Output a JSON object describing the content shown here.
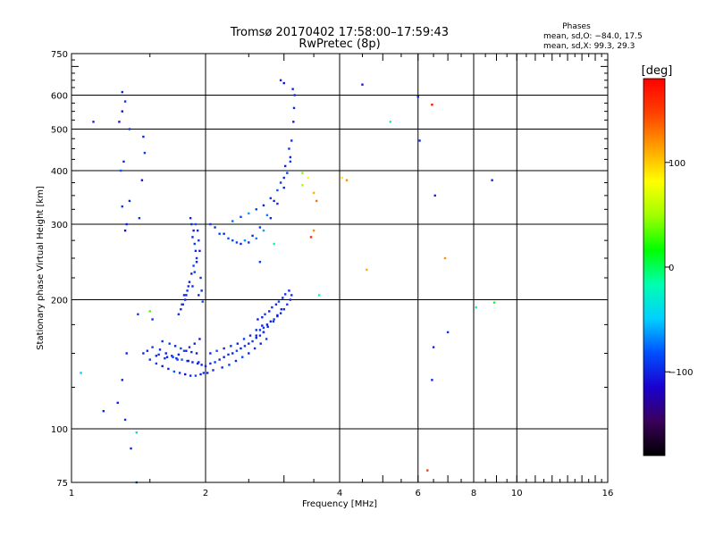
{
  "chart_data": {
    "type": "scatter",
    "title": "Tromsø 20170402 17:58:00–17:59:43",
    "subtitle": "RwPretec (8p)",
    "xlabel": "Frequency [MHz]",
    "ylabel": "Stationary phase Virtual Height [km]",
    "x_scale": "log",
    "y_scale": "log",
    "xlim": [
      1,
      16
    ],
    "ylim": [
      75,
      750
    ],
    "x_ticks": [
      1,
      2,
      4,
      6,
      8,
      10,
      16
    ],
    "x_tick_labels": [
      "1",
      "2",
      "4",
      "6",
      "8",
      "10",
      "16"
    ],
    "y_ticks": [
      75,
      100,
      200,
      300,
      400,
      500,
      600,
      750
    ],
    "y_tick_labels": [
      "75",
      "100",
      "200",
      "300",
      "400",
      "500",
      "600",
      "750"
    ],
    "grid": true,
    "phase_info": {
      "heading": "Phases",
      "line_o": "mean, sd,O: −84.0, 17.5",
      "line_x": "mean, sd,X:  99.3, 29.3"
    },
    "colorbar": {
      "label": "[deg]",
      "range": [
        -180,
        180
      ],
      "ticks": [
        100,
        0,
        -100
      ],
      "tick_labels": [
        "100",
        "0",
        "−100"
      ],
      "colors": [
        "#000000",
        "#3a005a",
        "#1a00d0",
        "#0050ff",
        "#00d0ff",
        "#00ffb0",
        "#00ff00",
        "#a0ff00",
        "#ffff00",
        "#ffa000",
        "#ff4000",
        "#ff0000"
      ]
    },
    "series": [
      {
        "x": [
          1.3,
          1.32,
          1.3,
          1.28,
          1.35,
          1.31,
          1.29,
          1.3,
          1.33,
          1.32,
          1.45,
          1.46,
          1.44,
          1.35,
          1.42,
          1.12,
          1.52,
          1.41,
          1.33,
          1.3,
          1.27,
          1.18,
          1.32,
          1.36
        ],
        "y": [
          610,
          580,
          550,
          520,
          500,
          420,
          400,
          330,
          300,
          290,
          480,
          440,
          380,
          340,
          310,
          520,
          180,
          185,
          150,
          130,
          115,
          110,
          105,
          90
        ],
        "phase": [
          -100,
          -95,
          -110,
          -105,
          -90,
          -100,
          -80,
          -95,
          -100,
          -110,
          -100,
          -90,
          -105,
          -100,
          -95,
          -100,
          -95,
          -90,
          -100,
          -100,
          -105,
          -100,
          -95,
          -100
        ]
      },
      {
        "x": [
          1.45,
          1.5,
          1.55,
          1.6,
          1.65,
          1.7,
          1.75,
          1.8,
          1.85,
          1.9,
          1.95,
          1.98,
          1.52,
          1.58,
          1.63,
          1.68,
          1.72,
          1.77,
          1.82,
          1.87,
          1.92,
          1.96,
          1.6,
          1.66,
          1.71,
          1.76,
          1.81,
          1.86,
          1.91,
          1.55,
          1.62,
          1.69,
          1.74,
          1.79,
          1.84,
          1.89,
          1.94,
          1.48,
          1.57,
          1.64,
          1.73,
          1.83,
          1.93
        ],
        "y": [
          150,
          145,
          142,
          140,
          138,
          136,
          135,
          134,
          133,
          133,
          134,
          135,
          155,
          153,
          150,
          148,
          146,
          145,
          144,
          143,
          142,
          141,
          160,
          158,
          156,
          154,
          152,
          151,
          150,
          148,
          146,
          147,
          149,
          152,
          155,
          158,
          162,
          152,
          149,
          147,
          145,
          144,
          143
        ],
        "phase": [
          -100,
          -95,
          -90,
          -105,
          -100,
          -80,
          -95,
          -110,
          -100,
          -85,
          -100,
          -95,
          -90,
          -100,
          -105,
          -95,
          -100,
          -80,
          -95,
          -100,
          -110,
          -100,
          -95,
          -90,
          -100,
          -85,
          -100,
          -95,
          -105,
          -100,
          -95,
          -90,
          -100,
          -85,
          -95,
          -100,
          -105,
          -100,
          -95,
          -100,
          -90,
          -100,
          -95
        ]
      },
      {
        "x": [
          1.85,
          1.86,
          1.88,
          1.87,
          1.89,
          1.9,
          1.91,
          1.88,
          1.86,
          1.84,
          1.82,
          1.8,
          1.78,
          1.76,
          1.74,
          1.9,
          1.92,
          1.93,
          1.94,
          1.91,
          1.89,
          1.87,
          1.95,
          1.96,
          1.97,
          1.93,
          1.83,
          1.79,
          1.77,
          1.81
        ],
        "y": [
          310,
          300,
          290,
          280,
          270,
          260,
          250,
          240,
          230,
          220,
          210,
          200,
          195,
          190,
          185,
          300,
          290,
          275,
          260,
          245,
          232,
          215,
          225,
          210,
          198,
          205,
          215,
          205,
          195,
          205
        ],
        "phase": [
          -100,
          -95,
          -105,
          -100,
          -90,
          -100,
          -95,
          -85,
          -100,
          -105,
          -95,
          -100,
          -90,
          -100,
          -95,
          -80,
          -100,
          -95,
          -105,
          -100,
          -90,
          -100,
          -95,
          -100,
          -85,
          -100,
          -95,
          -100,
          -90,
          -100
        ]
      },
      {
        "x": [
          2.0,
          2.05,
          2.1,
          2.15,
          2.2,
          2.25,
          2.3,
          2.35,
          2.4,
          2.45,
          2.5,
          2.55,
          2.6,
          2.65,
          2.7,
          2.05,
          2.12,
          2.2,
          2.28,
          2.36,
          2.44,
          2.52,
          2.6,
          2.68,
          2.02,
          2.08,
          2.18,
          2.26,
          2.34,
          2.42,
          2.5,
          2.58,
          2.66,
          2.74
        ],
        "y": [
          140,
          142,
          143,
          145,
          147,
          149,
          150,
          152,
          154,
          156,
          158,
          160,
          163,
          165,
          168,
          150,
          152,
          154,
          156,
          158,
          162,
          165,
          170,
          174,
          135,
          137,
          139,
          141,
          144,
          147,
          150,
          154,
          158,
          162
        ],
        "phase": [
          -100,
          -95,
          -90,
          -100,
          -105,
          -95,
          -100,
          -85,
          -100,
          -95,
          -100,
          -90,
          -100,
          -95,
          -105,
          -100,
          -80,
          -100,
          -95,
          -100,
          -90,
          -100,
          -95,
          -105,
          -100,
          -95,
          -100,
          -90,
          -100,
          -85,
          -100,
          -95,
          -100,
          -90
        ]
      },
      {
        "x": [
          2.6,
          2.65,
          2.7,
          2.75,
          2.8,
          2.85,
          2.9,
          2.95,
          3.0,
          3.05,
          3.1,
          3.12,
          2.62,
          2.68,
          2.72,
          2.78,
          2.82,
          2.88,
          2.92,
          2.98,
          3.02,
          3.08,
          2.7,
          2.76,
          2.84,
          2.9,
          2.96
        ],
        "y": [
          165,
          170,
          172,
          175,
          178,
          180,
          183,
          186,
          190,
          195,
          200,
          205,
          180,
          182,
          185,
          188,
          192,
          195,
          198,
          202,
          206,
          210,
          168,
          173,
          178,
          184,
          190
        ],
        "phase": [
          -100,
          -95,
          -90,
          -105,
          -100,
          -85,
          -100,
          -95,
          -100,
          -90,
          -100,
          -95,
          -105,
          -100,
          -90,
          -100,
          -95,
          -100,
          -85,
          -100,
          -95,
          -100,
          -90,
          -100,
          -95,
          -105,
          -100
        ]
      },
      {
        "x": [
          2.05,
          2.1,
          2.2,
          2.3,
          2.4,
          2.5,
          2.6,
          2.7,
          2.8,
          2.9,
          3.0,
          3.05,
          3.1,
          3.12,
          3.15,
          3.16,
          3.17,
          3.14,
          2.15,
          2.25,
          2.35,
          2.45,
          2.55,
          2.65,
          2.75,
          2.85,
          2.95,
          3.02,
          3.08,
          2.3,
          2.4,
          2.5,
          2.6,
          2.7,
          2.8,
          2.9,
          3.0,
          3.1
        ],
        "y": [
          300,
          295,
          285,
          275,
          270,
          272,
          278,
          290,
          310,
          335,
          365,
          395,
          430,
          470,
          520,
          560,
          600,
          620,
          285,
          278,
          272,
          275,
          282,
          295,
          315,
          340,
          375,
          410,
          450,
          305,
          312,
          318,
          325,
          332,
          345,
          360,
          385,
          420
        ],
        "phase": [
          -90,
          -95,
          -100,
          -85,
          -100,
          -95,
          -70,
          -60,
          -100,
          -95,
          -100,
          -90,
          -100,
          -95,
          -105,
          -100,
          -95,
          -100,
          -85,
          -80,
          -90,
          -65,
          -100,
          -95,
          -70,
          -100,
          -90,
          -100,
          -95,
          -75,
          -85,
          -60,
          -90,
          -100,
          -95,
          -80,
          -100,
          -90
        ]
      },
      {
        "x": [
          2.95,
          3.0,
          3.3,
          3.4,
          3.5,
          3.55,
          3.3,
          3.6,
          4.05,
          4.15,
          4.5,
          5.2,
          4.6,
          6.0,
          6.05,
          6.45,
          6.55,
          6.5,
          6.9,
          7.0,
          6.45,
          6.3,
          8.1,
          8.8,
          8.9,
          3.45,
          2.85,
          2.65,
          1.05,
          1.5,
          1.4,
          1.4,
          3.5
        ],
        "y": [
          650,
          640,
          395,
          385,
          355,
          340,
          370,
          205,
          385,
          380,
          635,
          520,
          235,
          595,
          470,
          570,
          350,
          155,
          250,
          168,
          130,
          80,
          192,
          380,
          197,
          280,
          270,
          245,
          135,
          188,
          98,
          75,
          290
        ],
        "phase": [
          -100,
          -110,
          40,
          80,
          110,
          130,
          50,
          -10,
          90,
          120,
          -105,
          -20,
          110,
          -100,
          -100,
          170,
          -100,
          -100,
          120,
          -95,
          -100,
          150,
          -10,
          -100,
          10,
          160,
          -20,
          -90,
          -50,
          30,
          -40,
          -80,
          120
        ]
      }
    ]
  }
}
